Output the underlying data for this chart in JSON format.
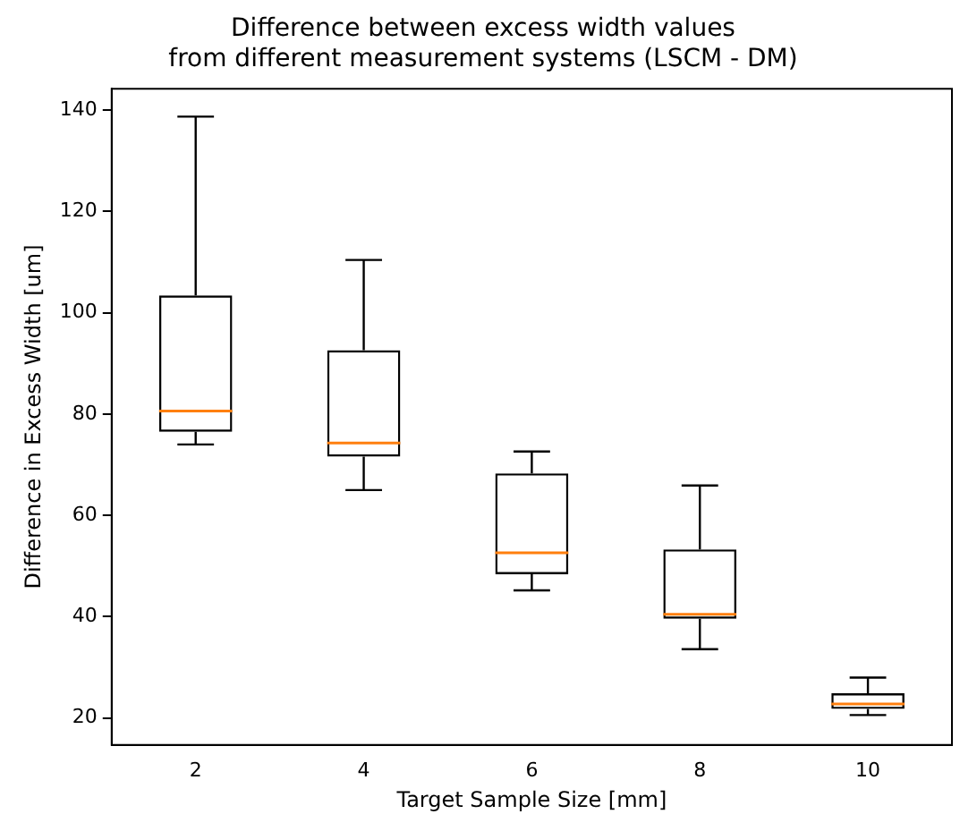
{
  "chart_data": {
    "type": "box",
    "title": "Difference between excess width values\nfrom different measurement systems (LSCM - DM)",
    "xlabel": "Target Sample Size [mm]",
    "ylabel": "Difference in Excess Width [um]",
    "categories": [
      "2",
      "4",
      "6",
      "8",
      "10"
    ],
    "boxes": [
      {
        "low": 74,
        "q1": 76.5,
        "median": 80.6,
        "q3": 103.4,
        "high": 138.7
      },
      {
        "low": 65,
        "q1": 71.6,
        "median": 74.3,
        "q3": 92.6,
        "high": 110.4
      },
      {
        "low": 45.2,
        "q1": 48.4,
        "median": 52.6,
        "q3": 68.3,
        "high": 72.6
      },
      {
        "low": 33.6,
        "q1": 39.6,
        "median": 40.5,
        "q3": 53.3,
        "high": 65.9
      },
      {
        "low": 20.6,
        "q1": 21.8,
        "median": 22.8,
        "q3": 24.9,
        "high": 28
      }
    ],
    "ylim": [
      14.7,
      144.2
    ],
    "yticks": [
      20,
      40,
      60,
      80,
      100,
      120,
      140
    ],
    "grid": false,
    "legend": false
  }
}
